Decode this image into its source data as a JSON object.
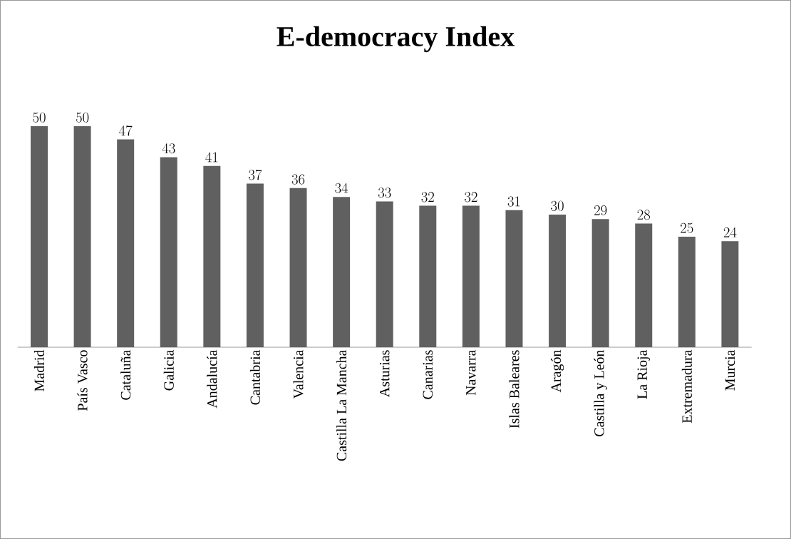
{
  "chart_data": {
    "type": "bar",
    "title": "E-democracy Index",
    "categories": [
      "Madrid",
      "País Vasco",
      "Cataluña",
      "Galicia",
      "Andalucía",
      "Cantabria",
      "Valencia",
      "Castilla La Mancha",
      "Asturias",
      "Canarias",
      "Navarra",
      "Islas Baleares",
      "Aragón",
      "Castilla y León",
      "La Rioja",
      "Extremadura",
      "Murcia"
    ],
    "values": [
      50,
      50,
      47,
      43,
      41,
      37,
      36,
      34,
      33,
      32,
      32,
      31,
      30,
      29,
      28,
      25,
      24
    ],
    "color": "#606060",
    "data_labels": true,
    "tick_labels": "x"
  }
}
